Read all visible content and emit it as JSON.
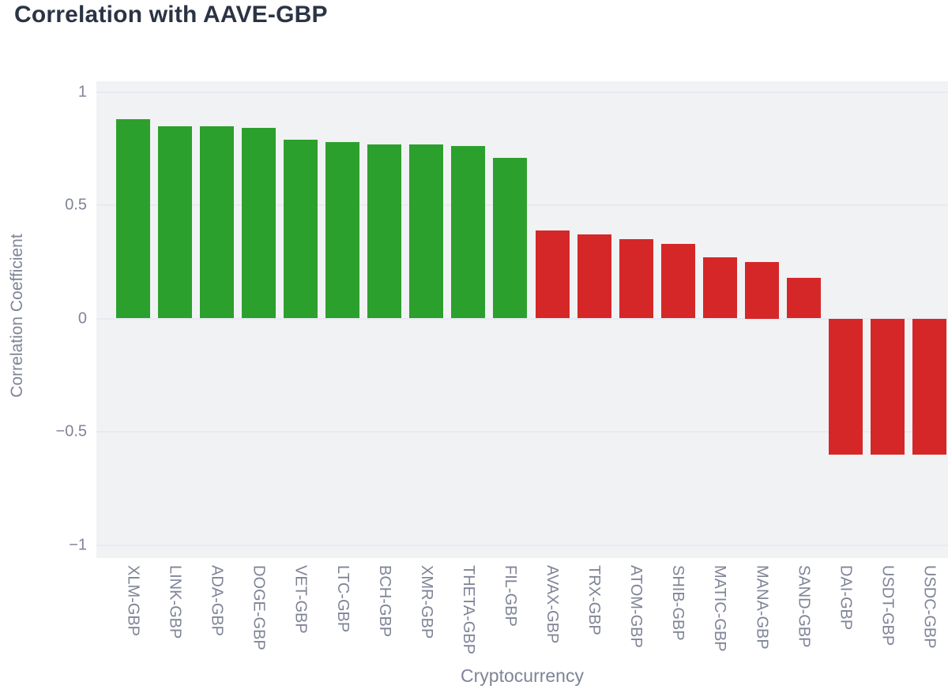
{
  "page": {
    "title": "Correlation with AAVE-GBP"
  },
  "chart_data": {
    "type": "bar",
    "title": "Correlation with AAVE-GBP",
    "xlabel": "Cryptocurrency",
    "ylabel": "Correlation Coefficient",
    "ylim": [
      -1.05,
      1.05
    ],
    "grid": true,
    "legend": "none",
    "plot_background": "#f1f2f4",
    "yticks": [
      {
        "label": "1",
        "value": 1
      },
      {
        "label": "0.5",
        "value": 0.5
      },
      {
        "label": "0",
        "value": 0
      },
      {
        "label": "−0.5",
        "value": -0.5
      },
      {
        "label": "−1",
        "value": -1
      }
    ],
    "categories": [
      "XLM-GBP",
      "LINK-GBP",
      "ADA-GBP",
      "DOGE-GBP",
      "VET-GBP",
      "LTC-GBP",
      "BCH-GBP",
      "XMR-GBP",
      "THETA-GBP",
      "FIL-GBP",
      "AVAX-GBP",
      "TRX-GBP",
      "ATOM-GBP",
      "SHIB-GBP",
      "MATIC-GBP",
      "MANA-GBP",
      "SAND-GBP",
      "DAI-GBP",
      "USDT-GBP",
      "USDC-GBP"
    ],
    "values": [
      0.88,
      0.85,
      0.85,
      0.84,
      0.79,
      0.78,
      0.77,
      0.77,
      0.76,
      0.71,
      0.39,
      0.37,
      0.35,
      0.33,
      0.27,
      0.25,
      0.18,
      -0.6,
      -0.6,
      -0.6
    ],
    "bar_colors": [
      "positive",
      "positive",
      "positive",
      "positive",
      "positive",
      "positive",
      "positive",
      "positive",
      "positive",
      "positive",
      "negative",
      "negative",
      "negative",
      "negative",
      "negative",
      "negative",
      "negative",
      "negative",
      "negative",
      "negative"
    ],
    "colors": {
      "positive": "#2ca02c",
      "negative": "#d62728"
    }
  }
}
